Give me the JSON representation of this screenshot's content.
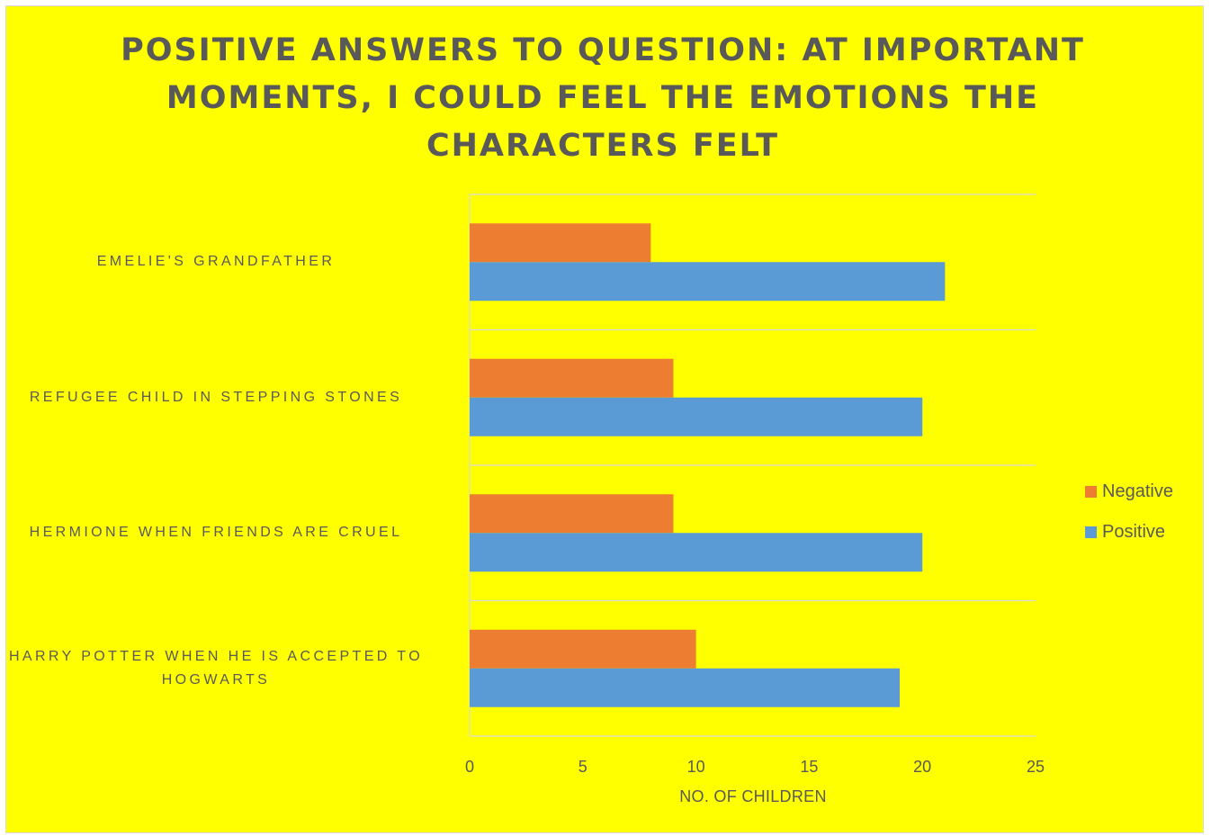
{
  "chart_data": {
    "type": "bar",
    "orientation": "horizontal",
    "title": "POSITIVE ANSWERS TO QUESTION: AT IMPORTANT MOMENTS, I COULD FEEL THE EMOTIONS THE CHARACTERS FELT",
    "xlabel": "NO. OF CHILDREN",
    "ylabel": "",
    "xlim": [
      0,
      25
    ],
    "x_ticks": [
      "0",
      "5",
      "10",
      "15",
      "20",
      "25"
    ],
    "categories": [
      "EMELIE'S GRANDFATHER",
      "REFUGEE CHILD IN STEPPING STONES",
      "HERMIONE WHEN FRIENDS ARE CRUEL",
      "HARRY POTTER WHEN HE IS ACCEPTED TO HOGWARTS"
    ],
    "series": [
      {
        "name": "Negative",
        "color": "#ed7d31",
        "values": [
          8,
          9,
          9,
          10
        ]
      },
      {
        "name": "Positive",
        "color": "#5b9bd5",
        "values": [
          21,
          20,
          20,
          19
        ]
      }
    ],
    "grid": true,
    "legend_position": "right",
    "background": "#ffff00"
  }
}
